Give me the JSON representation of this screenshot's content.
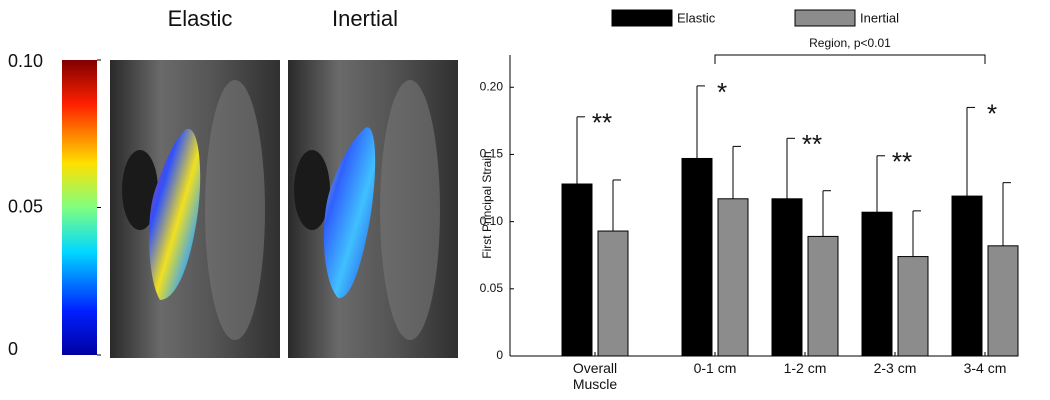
{
  "figure": {
    "image_labels": [
      "Elastic",
      "Inertial"
    ],
    "colorbar": {
      "lim": [
        0,
        0.1
      ],
      "ticks": [
        0,
        0.05,
        {
          "value": 0.1,
          "label": "0.10"
        }
      ]
    }
  },
  "chart_data": {
    "type": "bar",
    "categories": [
      "Overall Muscle",
      "0-1 cm",
      "1-2 cm",
      "2-3 cm",
      "3-4 cm"
    ],
    "series": [
      {
        "name": "Elastic",
        "color": "#000000",
        "values": [
          0.128,
          0.147,
          0.117,
          0.107,
          0.119
        ],
        "errors": [
          0.05,
          0.054,
          0.045,
          0.042,
          0.066
        ]
      },
      {
        "name": "Inertial",
        "color": "#8c8c8c",
        "values": [
          0.093,
          0.117,
          0.089,
          0.074,
          0.082
        ],
        "errors": [
          0.038,
          0.039,
          0.034,
          0.034,
          0.047
        ]
      }
    ],
    "significance": [
      "**",
      "*",
      "**",
      "**",
      "*"
    ],
    "bracket_label": "Region, p<0.01",
    "y_label": "First Principal Strain",
    "ylim": [
      0,
      0.224
    ],
    "yticks": [
      0,
      0.05,
      {
        "value": 0.1,
        "label": "0.10"
      },
      0.15,
      {
        "value": 0.2,
        "label": "0.20"
      }
    ]
  }
}
